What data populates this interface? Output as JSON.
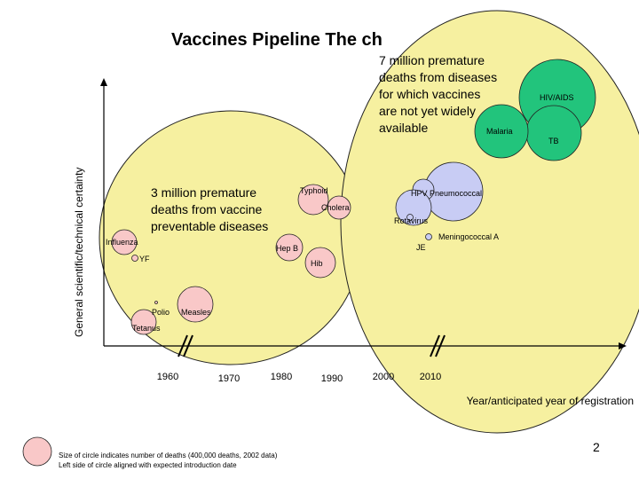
{
  "slide": {
    "title": "Vaccines Pipeline  The ch",
    "page_number": "2"
  },
  "annotations": {
    "big_bubble_text": [
      "7 million premature",
      "deaths from diseases",
      "for which vaccines",
      "are not yet widely",
      "available"
    ],
    "small_bubble_text": [
      "3 million premature",
      "deaths from vaccine",
      "preventable diseases"
    ]
  },
  "legend": {
    "note_line1": "Size of circle indicates number of deaths (400,000 deaths, 2002 data)",
    "note_line2": "Left side of circle aligned with expected introduction date"
  },
  "colors": {
    "background_bubble": "#f6f0a0",
    "established_vaccine": "#f9c8c8",
    "new_vaccine": "#c8ccf4",
    "future_vaccine": "#22c47c",
    "outline": "#222222"
  },
  "chart_data": {
    "type": "bubble",
    "xlabel": "Year/anticipated year of registration",
    "ylabel": "General scientific/technical certainty",
    "x_ticks": [
      "1960",
      "1970",
      "1980",
      "1990",
      "2000",
      "2010"
    ],
    "x_axis_breaks_after": [
      "1960",
      "2010"
    ],
    "size_unit": "deaths (2002 data)",
    "vaccines": [
      {
        "name": "Influenza",
        "group": "established"
      },
      {
        "name": "YF",
        "group": "established"
      },
      {
        "name": "Polio",
        "group": "established"
      },
      {
        "name": "Measles",
        "group": "established"
      },
      {
        "name": "Tetanus",
        "group": "established"
      },
      {
        "name": "Hep B",
        "group": "established"
      },
      {
        "name": "Hib",
        "group": "established"
      },
      {
        "name": "Typhoid",
        "group": "established"
      },
      {
        "name": "Cholera",
        "group": "established"
      },
      {
        "name": "HPV",
        "group": "new"
      },
      {
        "name": "Pneumococcal",
        "group": "new"
      },
      {
        "name": "Rotavirus",
        "group": "new"
      },
      {
        "name": "JE",
        "group": "new"
      },
      {
        "name": "Meningococcal A",
        "group": "new"
      },
      {
        "name": "HIV/AIDS",
        "group": "future"
      },
      {
        "name": "TB",
        "group": "future"
      },
      {
        "name": "Malaria",
        "group": "future"
      }
    ]
  }
}
